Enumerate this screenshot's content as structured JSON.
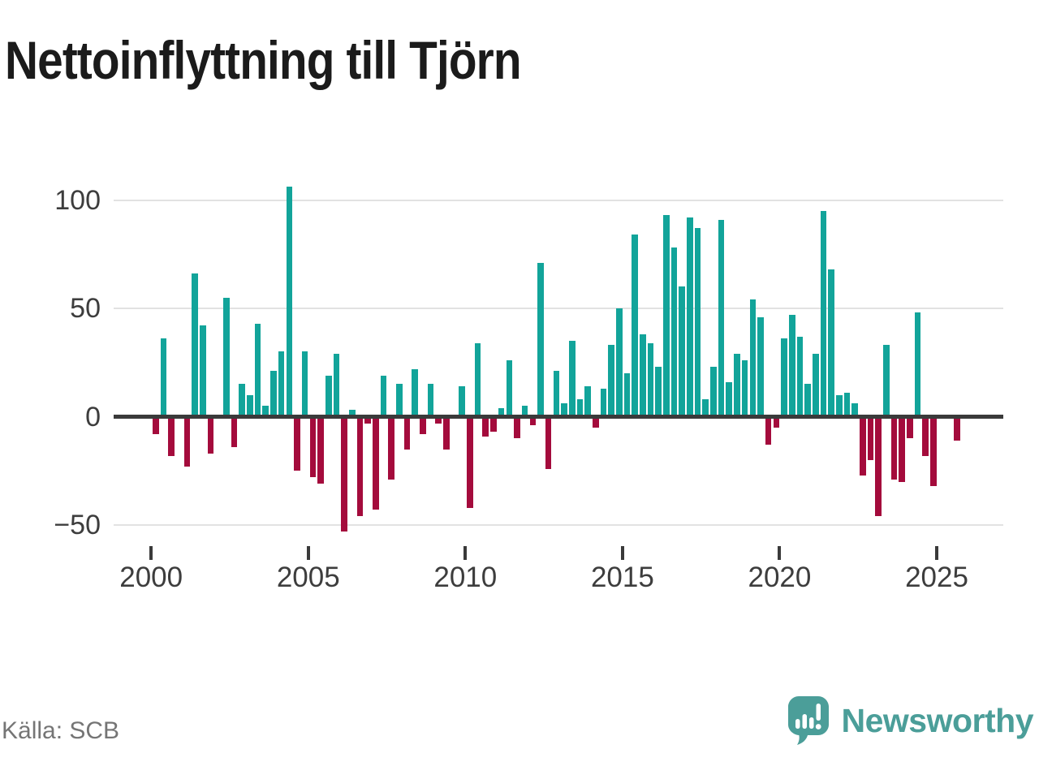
{
  "title": "Nettoinflyttning till Tjörn",
  "source": "Källa: SCB",
  "brand": {
    "name": "Newsworthy"
  },
  "colors": {
    "positive": "#12a49a",
    "negative": "#a40b3c",
    "axis": "#3a3a3a",
    "grid": "#e2e2e2",
    "tick_text": "#3d3d3d",
    "muted_text": "#757575",
    "brand_teal": "#4b9e99"
  },
  "chart_data": {
    "type": "bar",
    "title": "Nettoinflyttning till Tjörn",
    "xlabel": "",
    "ylabel": "",
    "x_unit": "quarter",
    "start": {
      "year": 2000,
      "quarter": 1
    },
    "end": {
      "year": 2025,
      "quarter": 3
    },
    "values": [
      -8,
      36,
      -18,
      0,
      -23,
      66,
      42,
      -17,
      0,
      55,
      -14,
      15,
      10,
      43,
      5,
      21,
      30,
      106,
      -25,
      30,
      -28,
      -31,
      19,
      29,
      -53,
      3,
      -46,
      -3,
      -43,
      19,
      -29,
      15,
      -15,
      22,
      -8,
      15,
      -3,
      -15,
      0,
      14,
      -42,
      34,
      -9,
      -7,
      4,
      26,
      -10,
      5,
      -4,
      71,
      -24,
      21,
      6,
      35,
      8,
      14,
      -5,
      13,
      33,
      50,
      20,
      84,
      38,
      34,
      23,
      93,
      78,
      60,
      92,
      87,
      8,
      23,
      91,
      16,
      29,
      26,
      54,
      46,
      -13,
      -5,
      36,
      47,
      37,
      15,
      29,
      95,
      68,
      10,
      11,
      6,
      -27,
      -20,
      -46,
      33,
      -29,
      -30,
      -10,
      48,
      -18,
      -32,
      0,
      -1,
      -11
    ],
    "y_ticks": [
      {
        "label": "100",
        "value": 100
      },
      {
        "label": "50",
        "value": 50
      },
      {
        "label": "0",
        "value": 0
      },
      {
        "label": "−50",
        "value": -50
      }
    ],
    "x_ticks": [
      {
        "label": "2000",
        "year": 2000
      },
      {
        "label": "2005",
        "year": 2005
      },
      {
        "label": "2010",
        "year": 2010
      },
      {
        "label": "2015",
        "year": 2015
      },
      {
        "label": "2020",
        "year": 2020
      },
      {
        "label": "2025",
        "year": 2025
      }
    ],
    "ylim": [
      -60,
      110
    ],
    "grid": "horizontal",
    "legend": "none",
    "positive_color": "#12a49a",
    "negative_color": "#a40b3c"
  }
}
